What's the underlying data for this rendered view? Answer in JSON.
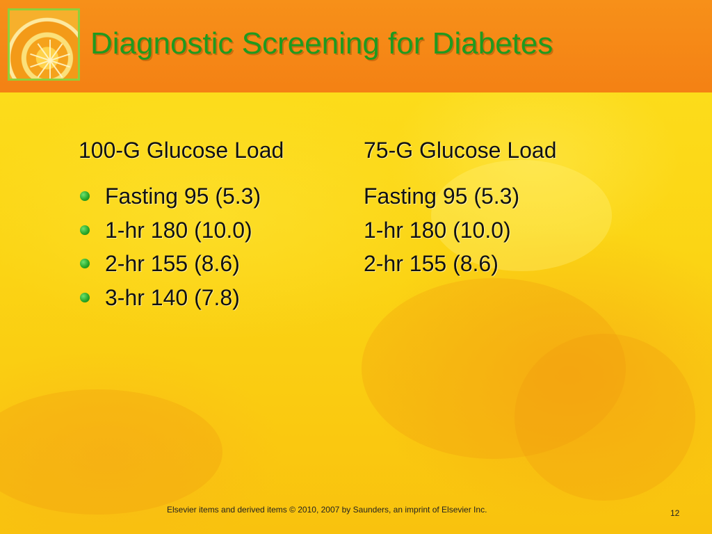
{
  "slide": {
    "title": "Diagnostic Screening for Diabetes",
    "columns": [
      {
        "header": "100-G Glucose Load",
        "items": [
          "Fasting 95 (5.3)",
          "1-hr 180 (10.0)",
          "2-hr 155 (8.6)",
          "3-hr 140 (7.8)"
        ]
      },
      {
        "header": "75-G Glucose Load",
        "items": [
          "Fasting 95 (5.3)",
          "1-hr 180 (10.0)",
          "2-hr 155 (8.6)"
        ]
      }
    ],
    "footer": "Elsevier items and derived items © 2010, 2007 by Saunders, an imprint of Elsevier Inc.",
    "page_number": "12"
  },
  "colors": {
    "header_bar": "#f48114",
    "title": "#1f9a1f",
    "bullet": "#2aa82a",
    "background": "#fcd20a",
    "logo_border": "#8fd03a"
  },
  "icons": {
    "logo": "orange-slice-icon",
    "bullet": "bullet-dot-icon"
  }
}
